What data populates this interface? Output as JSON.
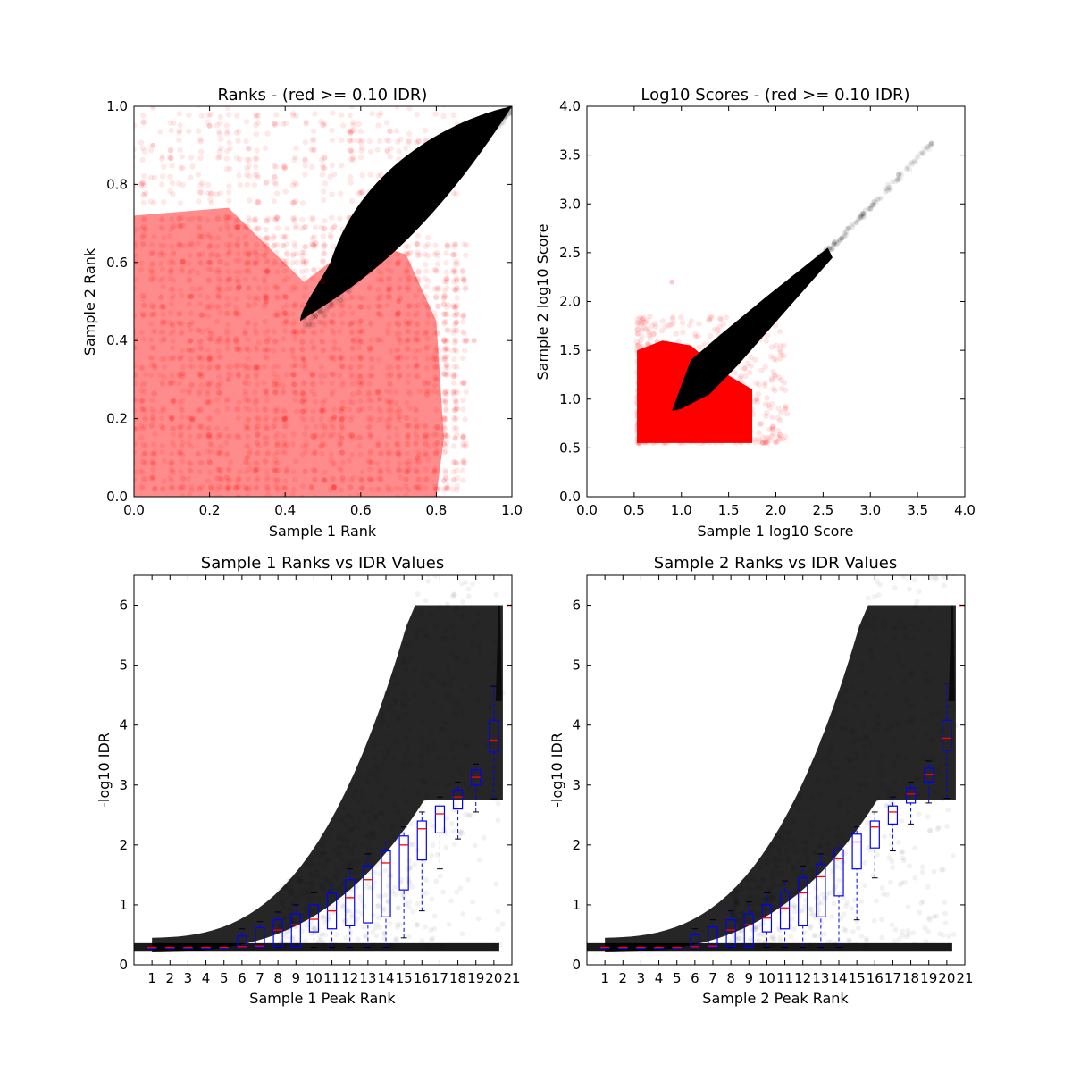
{
  "chart_data": [
    {
      "id": "ranks",
      "type": "scatter",
      "title": "Ranks - (red >= 0.10 IDR)",
      "xlabel": "Sample 1 Rank",
      "ylabel": "Sample 2 Rank",
      "xlim": [
        0.0,
        1.0
      ],
      "ylim": [
        0.0,
        1.0
      ],
      "xticks": [
        "0.0",
        "0.2",
        "0.4",
        "0.6",
        "0.8",
        "1.0"
      ],
      "yticks": [
        "0.0",
        "0.2",
        "0.4",
        "0.6",
        "0.8",
        "1.0"
      ],
      "grid": false,
      "series": [
        {
          "color": "#ff0000",
          "description": "peaks above the 0.10 IDR threshold, dense over the lower-left region x 0.0-0.85, y 0.0-0.75",
          "points": [
            [
              0.05,
              0.05
            ],
            [
              0.1,
              0.2
            ],
            [
              0.15,
              0.4
            ],
            [
              0.2,
              0.6
            ],
            [
              0.25,
              0.3
            ],
            [
              0.3,
              0.1
            ],
            [
              0.35,
              0.5
            ],
            [
              0.4,
              0.2
            ],
            [
              0.45,
              0.35
            ],
            [
              0.5,
              0.55
            ],
            [
              0.55,
              0.15
            ],
            [
              0.6,
              0.45
            ],
            [
              0.65,
              0.25
            ],
            [
              0.7,
              0.5
            ],
            [
              0.75,
              0.1
            ],
            [
              0.8,
              0.3
            ],
            [
              0.85,
              0.15
            ],
            [
              0.05,
              0.9
            ],
            [
              0.2,
              0.95
            ],
            [
              0.9,
              0.4
            ]
          ]
        },
        {
          "color": "#000000",
          "description": "peaks below the IDR threshold, dense diagonal band from (0.45,0.45) to (1.0,1.0)",
          "points": [
            [
              0.45,
              0.46
            ],
            [
              0.5,
              0.55
            ],
            [
              0.55,
              0.62
            ],
            [
              0.6,
              0.7
            ],
            [
              0.65,
              0.68
            ],
            [
              0.7,
              0.8
            ],
            [
              0.75,
              0.76
            ],
            [
              0.8,
              0.85
            ],
            [
              0.85,
              0.88
            ],
            [
              0.9,
              0.92
            ],
            [
              0.95,
              0.95
            ],
            [
              1.0,
              1.0
            ]
          ]
        }
      ]
    },
    {
      "id": "scores",
      "type": "scatter",
      "title": "Log10 Scores - (red >= 0.10 IDR)",
      "xlabel": "Sample 1 log10 Score",
      "ylabel": "Sample 2 log10 Score",
      "xlim": [
        0.0,
        4.0
      ],
      "ylim": [
        0.0,
        4.0
      ],
      "xticks": [
        "0.0",
        "0.5",
        "1.0",
        "1.5",
        "2.0",
        "2.5",
        "3.0",
        "3.5",
        "4.0"
      ],
      "yticks": [
        "0.0",
        "0.5",
        "1.0",
        "1.5",
        "2.0",
        "2.5",
        "3.0",
        "3.5",
        "4.0"
      ],
      "grid": false,
      "series": [
        {
          "color": "#ff0000",
          "description": "low-score peaks above the IDR threshold, x 0.5-1.8, y 0.55-1.6",
          "points": [
            [
              0.55,
              0.55
            ],
            [
              0.7,
              0.9
            ],
            [
              0.8,
              1.2
            ],
            [
              0.6,
              1.5
            ],
            [
              1.0,
              0.6
            ],
            [
              1.3,
              0.8
            ],
            [
              1.6,
              0.6
            ],
            [
              1.8,
              1.0
            ],
            [
              0.9,
              2.2
            ],
            [
              2.1,
              0.9
            ]
          ]
        },
        {
          "color": "#000000",
          "description": "reproducible peaks below the IDR threshold along the diagonal from about (0.9,0.9) to (3.65,3.62)",
          "points": [
            [
              0.95,
              0.9
            ],
            [
              1.2,
              1.4
            ],
            [
              1.5,
              1.6
            ],
            [
              1.8,
              1.9
            ],
            [
              2.1,
              2.1
            ],
            [
              2.4,
              2.4
            ],
            [
              2.7,
              2.65
            ],
            [
              3.0,
              2.95
            ],
            [
              3.3,
              3.3
            ],
            [
              3.65,
              3.62
            ]
          ]
        }
      ]
    },
    {
      "id": "s1idr",
      "type": "box",
      "title": "Sample 1 Ranks vs IDR Values",
      "xlabel": "Sample 1 Peak Rank",
      "ylabel": "-log10 IDR",
      "xlim": [
        0,
        21
      ],
      "ylim": [
        0,
        6.5
      ],
      "xticks": [
        "1",
        "2",
        "3",
        "4",
        "5",
        "6",
        "7",
        "8",
        "9",
        "10",
        "11",
        "12",
        "13",
        "14",
        "15",
        "16",
        "17",
        "18",
        "19",
        "20",
        "21"
      ],
      "yticks": [
        "0",
        "1",
        "2",
        "3",
        "4",
        "5",
        "6"
      ],
      "grid": false,
      "box_color": "#0000ff",
      "median_color": "#ff0000",
      "scatter_color": "#000000",
      "boxes": [
        {
          "x": 1,
          "q1": 0.29,
          "median": 0.29,
          "q3": 0.29,
          "whislo": 0.29,
          "whishi": 0.29
        },
        {
          "x": 2,
          "q1": 0.29,
          "median": 0.29,
          "q3": 0.29,
          "whislo": 0.29,
          "whishi": 0.29
        },
        {
          "x": 3,
          "q1": 0.29,
          "median": 0.29,
          "q3": 0.29,
          "whislo": 0.29,
          "whishi": 0.29
        },
        {
          "x": 4,
          "q1": 0.29,
          "median": 0.29,
          "q3": 0.29,
          "whislo": 0.29,
          "whishi": 0.29
        },
        {
          "x": 5,
          "q1": 0.29,
          "median": 0.29,
          "q3": 0.29,
          "whislo": 0.29,
          "whishi": 0.29
        },
        {
          "x": 6,
          "q1": 0.29,
          "median": 0.3,
          "q3": 0.48,
          "whislo": 0.29,
          "whishi": 0.6
        },
        {
          "x": 7,
          "q1": 0.29,
          "median": 0.31,
          "q3": 0.62,
          "whislo": 0.29,
          "whishi": 0.72
        },
        {
          "x": 8,
          "q1": 0.3,
          "median": 0.58,
          "q3": 0.75,
          "whislo": 0.29,
          "whishi": 0.88
        },
        {
          "x": 9,
          "q1": 0.29,
          "median": 0.67,
          "q3": 0.85,
          "whislo": 0.29,
          "whishi": 1.0
        },
        {
          "x": 10,
          "q1": 0.55,
          "median": 0.76,
          "q3": 1.0,
          "whislo": 0.29,
          "whishi": 1.2
        },
        {
          "x": 11,
          "q1": 0.6,
          "median": 0.9,
          "q3": 1.2,
          "whislo": 0.29,
          "whishi": 1.35
        },
        {
          "x": 12,
          "q1": 0.65,
          "median": 1.12,
          "q3": 1.42,
          "whislo": 0.29,
          "whishi": 1.6
        },
        {
          "x": 13,
          "q1": 0.7,
          "median": 1.42,
          "q3": 1.65,
          "whislo": 0.29,
          "whishi": 1.85
        },
        {
          "x": 14,
          "q1": 0.8,
          "median": 1.7,
          "q3": 1.9,
          "whislo": 0.29,
          "whishi": 2.05
        },
        {
          "x": 15,
          "q1": 1.25,
          "median": 2.0,
          "q3": 2.15,
          "whislo": 0.45,
          "whishi": 2.3
        },
        {
          "x": 16,
          "q1": 1.75,
          "median": 2.27,
          "q3": 2.4,
          "whislo": 0.9,
          "whishi": 2.55
        },
        {
          "x": 17,
          "q1": 2.2,
          "median": 2.52,
          "q3": 2.65,
          "whislo": 1.6,
          "whishi": 2.8
        },
        {
          "x": 18,
          "q1": 2.6,
          "median": 2.8,
          "q3": 2.92,
          "whislo": 2.1,
          "whishi": 3.05
        },
        {
          "x": 19,
          "q1": 3.0,
          "median": 3.13,
          "q3": 3.25,
          "whislo": 2.55,
          "whishi": 3.35
        },
        {
          "x": 20,
          "q1": 3.55,
          "median": 3.75,
          "q3": 4.08,
          "whislo": 2.77,
          "whishi": 4.65
        }
      ],
      "outliers": [
        {
          "x": 21,
          "y": 6.0
        }
      ]
    },
    {
      "id": "s2idr",
      "type": "box",
      "title": "Sample 2 Ranks vs IDR Values",
      "xlabel": "Sample 2 Peak Rank",
      "ylabel": "-log10 IDR",
      "xlim": [
        0,
        21
      ],
      "ylim": [
        0,
        6.5
      ],
      "xticks": [
        "1",
        "2",
        "3",
        "4",
        "5",
        "6",
        "7",
        "8",
        "9",
        "10",
        "11",
        "12",
        "13",
        "14",
        "15",
        "16",
        "17",
        "18",
        "19",
        "20",
        "21"
      ],
      "yticks": [
        "0",
        "1",
        "2",
        "3",
        "4",
        "5",
        "6"
      ],
      "grid": false,
      "box_color": "#0000ff",
      "median_color": "#ff0000",
      "scatter_color": "#000000",
      "boxes": [
        {
          "x": 1,
          "q1": 0.29,
          "median": 0.29,
          "q3": 0.29,
          "whislo": 0.29,
          "whishi": 0.29
        },
        {
          "x": 2,
          "q1": 0.29,
          "median": 0.29,
          "q3": 0.29,
          "whislo": 0.29,
          "whishi": 0.29
        },
        {
          "x": 3,
          "q1": 0.29,
          "median": 0.29,
          "q3": 0.29,
          "whislo": 0.29,
          "whishi": 0.29
        },
        {
          "x": 4,
          "q1": 0.29,
          "median": 0.29,
          "q3": 0.29,
          "whislo": 0.29,
          "whishi": 0.29
        },
        {
          "x": 5,
          "q1": 0.29,
          "median": 0.29,
          "q3": 0.29,
          "whislo": 0.29,
          "whishi": 0.29
        },
        {
          "x": 6,
          "q1": 0.29,
          "median": 0.3,
          "q3": 0.5,
          "whislo": 0.29,
          "whishi": 0.6
        },
        {
          "x": 7,
          "q1": 0.29,
          "median": 0.31,
          "q3": 0.63,
          "whislo": 0.29,
          "whishi": 0.75
        },
        {
          "x": 8,
          "q1": 0.3,
          "median": 0.58,
          "q3": 0.75,
          "whislo": 0.29,
          "whishi": 0.9
        },
        {
          "x": 9,
          "q1": 0.29,
          "median": 0.67,
          "q3": 0.85,
          "whislo": 0.29,
          "whishi": 1.05
        },
        {
          "x": 10,
          "q1": 0.55,
          "median": 0.78,
          "q3": 1.0,
          "whislo": 0.29,
          "whishi": 1.2
        },
        {
          "x": 11,
          "q1": 0.6,
          "median": 0.95,
          "q3": 1.22,
          "whislo": 0.29,
          "whishi": 1.4
        },
        {
          "x": 12,
          "q1": 0.65,
          "median": 1.2,
          "q3": 1.45,
          "whislo": 0.29,
          "whishi": 1.65
        },
        {
          "x": 13,
          "q1": 0.8,
          "median": 1.47,
          "q3": 1.68,
          "whislo": 0.29,
          "whishi": 1.85
        },
        {
          "x": 14,
          "q1": 1.15,
          "median": 1.77,
          "q3": 1.92,
          "whislo": 0.29,
          "whishi": 2.05
        },
        {
          "x": 15,
          "q1": 1.6,
          "median": 2.05,
          "q3": 2.18,
          "whislo": 0.75,
          "whishi": 2.3
        },
        {
          "x": 16,
          "q1": 1.95,
          "median": 2.3,
          "q3": 2.4,
          "whislo": 1.45,
          "whishi": 2.55
        },
        {
          "x": 17,
          "q1": 2.35,
          "median": 2.55,
          "q3": 2.65,
          "whislo": 1.9,
          "whishi": 2.8
        },
        {
          "x": 18,
          "q1": 2.7,
          "median": 2.85,
          "q3": 2.95,
          "whislo": 2.35,
          "whishi": 3.05
        },
        {
          "x": 19,
          "q1": 3.05,
          "median": 3.18,
          "q3": 3.28,
          "whislo": 2.7,
          "whishi": 3.4
        },
        {
          "x": 20,
          "q1": 3.58,
          "median": 3.78,
          "q3": 4.08,
          "whislo": 2.78,
          "whishi": 4.7
        }
      ],
      "outliers": [
        {
          "x": 21,
          "y": 6.0
        }
      ]
    }
  ]
}
